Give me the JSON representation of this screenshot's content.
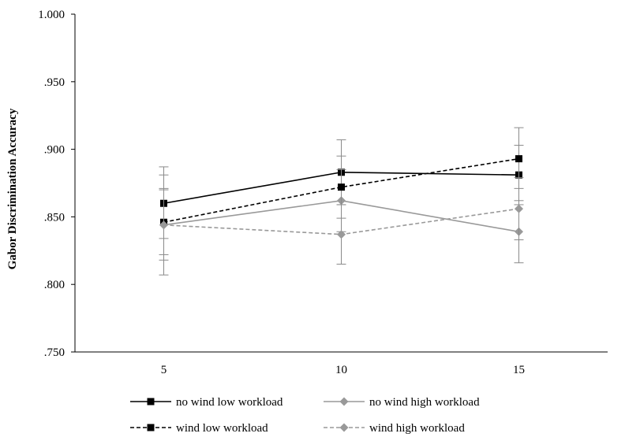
{
  "chart_data": {
    "type": "line",
    "title": "",
    "xlabel": "",
    "ylabel": "Gabor Discrimination Accuracy",
    "x": [
      5,
      10,
      15
    ],
    "x_tick_labels": [
      "5",
      "10",
      "15"
    ],
    "y_tick_labels": [
      ".750",
      ".800",
      ".850",
      ".900",
      ".950",
      "1.000"
    ],
    "ylim": [
      0.75,
      1.0
    ],
    "grid": false,
    "legend_position": "bottom",
    "series": [
      {
        "name": "no wind low workload",
        "values": [
          0.86,
          0.883,
          0.881
        ],
        "error": [
          [
            0.834,
            0.887
          ],
          [
            0.859,
            0.907
          ],
          [
            0.859,
            0.903
          ]
        ],
        "color": "#000000",
        "dash": "solid",
        "marker": "square"
      },
      {
        "name": "no wind high workload",
        "values": [
          0.844,
          0.862,
          0.839
        ],
        "error": [
          [
            0.818,
            0.871
          ],
          [
            0.839,
            0.885
          ],
          [
            0.816,
            0.862
          ]
        ],
        "color": "#999999",
        "dash": "solid",
        "marker": "diamond"
      },
      {
        "name": "wind low workload",
        "values": [
          0.846,
          0.872,
          0.893
        ],
        "error": [
          [
            0.822,
            0.87
          ],
          [
            0.849,
            0.895
          ],
          [
            0.871,
            0.916
          ]
        ],
        "color": "#000000",
        "dash": "dashed",
        "marker": "square"
      },
      {
        "name": "wind high workload",
        "values": [
          0.844,
          0.837,
          0.856
        ],
        "error": [
          [
            0.807,
            0.881
          ],
          [
            0.815,
            0.859
          ],
          [
            0.833,
            0.879
          ]
        ],
        "color": "#999999",
        "dash": "dashed",
        "marker": "diamond"
      }
    ]
  }
}
